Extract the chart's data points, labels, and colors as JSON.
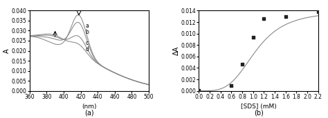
{
  "panel_a": {
    "xlabel": "(nm)",
    "ylabel": "A",
    "xlim": [
      360,
      500
    ],
    "ylim": [
      0,
      0.04
    ],
    "yticks": [
      0,
      0.005,
      0.01,
      0.015,
      0.02,
      0.025,
      0.03,
      0.035,
      0.04
    ],
    "xticks": [
      360,
      380,
      400,
      420,
      440,
      460,
      480,
      500
    ],
    "labels": [
      "a",
      "b",
      "c",
      "d"
    ],
    "caption": "(a)",
    "line_color": "#888888",
    "curves": [
      {
        "peak418": 0.037,
        "trough390": 0.022,
        "tail_start": 0.026
      },
      {
        "peak418": 0.033,
        "trough390": 0.024,
        "tail_start": 0.026
      },
      {
        "peak418": 0.026,
        "trough390": 0.026,
        "tail_start": 0.026
      },
      {
        "peak418": 0.022,
        "trough390": 0.027,
        "tail_start": 0.026
      }
    ]
  },
  "panel_b": {
    "xlabel": "[SDS] (mM)",
    "ylabel": "ΔA",
    "xlim": [
      0,
      2.2
    ],
    "ylim": [
      0,
      0.014
    ],
    "xticks": [
      0,
      0.2,
      0.4,
      0.6,
      0.8,
      1.0,
      1.2,
      1.4,
      1.6,
      1.8,
      2.0,
      2.2
    ],
    "yticks": [
      0,
      0.002,
      0.004,
      0.006,
      0.008,
      0.01,
      0.012,
      0.014
    ],
    "data_x": [
      0.0,
      0.6,
      0.8,
      1.0,
      1.2,
      1.6,
      2.2
    ],
    "data_y": [
      5e-05,
      0.0009,
      0.0046,
      0.0093,
      0.0126,
      0.013,
      0.0138
    ],
    "caption": "(b)",
    "line_color": "#888888",
    "marker_color": "#222222",
    "hill_Bmax": 0.0139,
    "hill_K": 1.05,
    "hill_n": 3.8
  }
}
